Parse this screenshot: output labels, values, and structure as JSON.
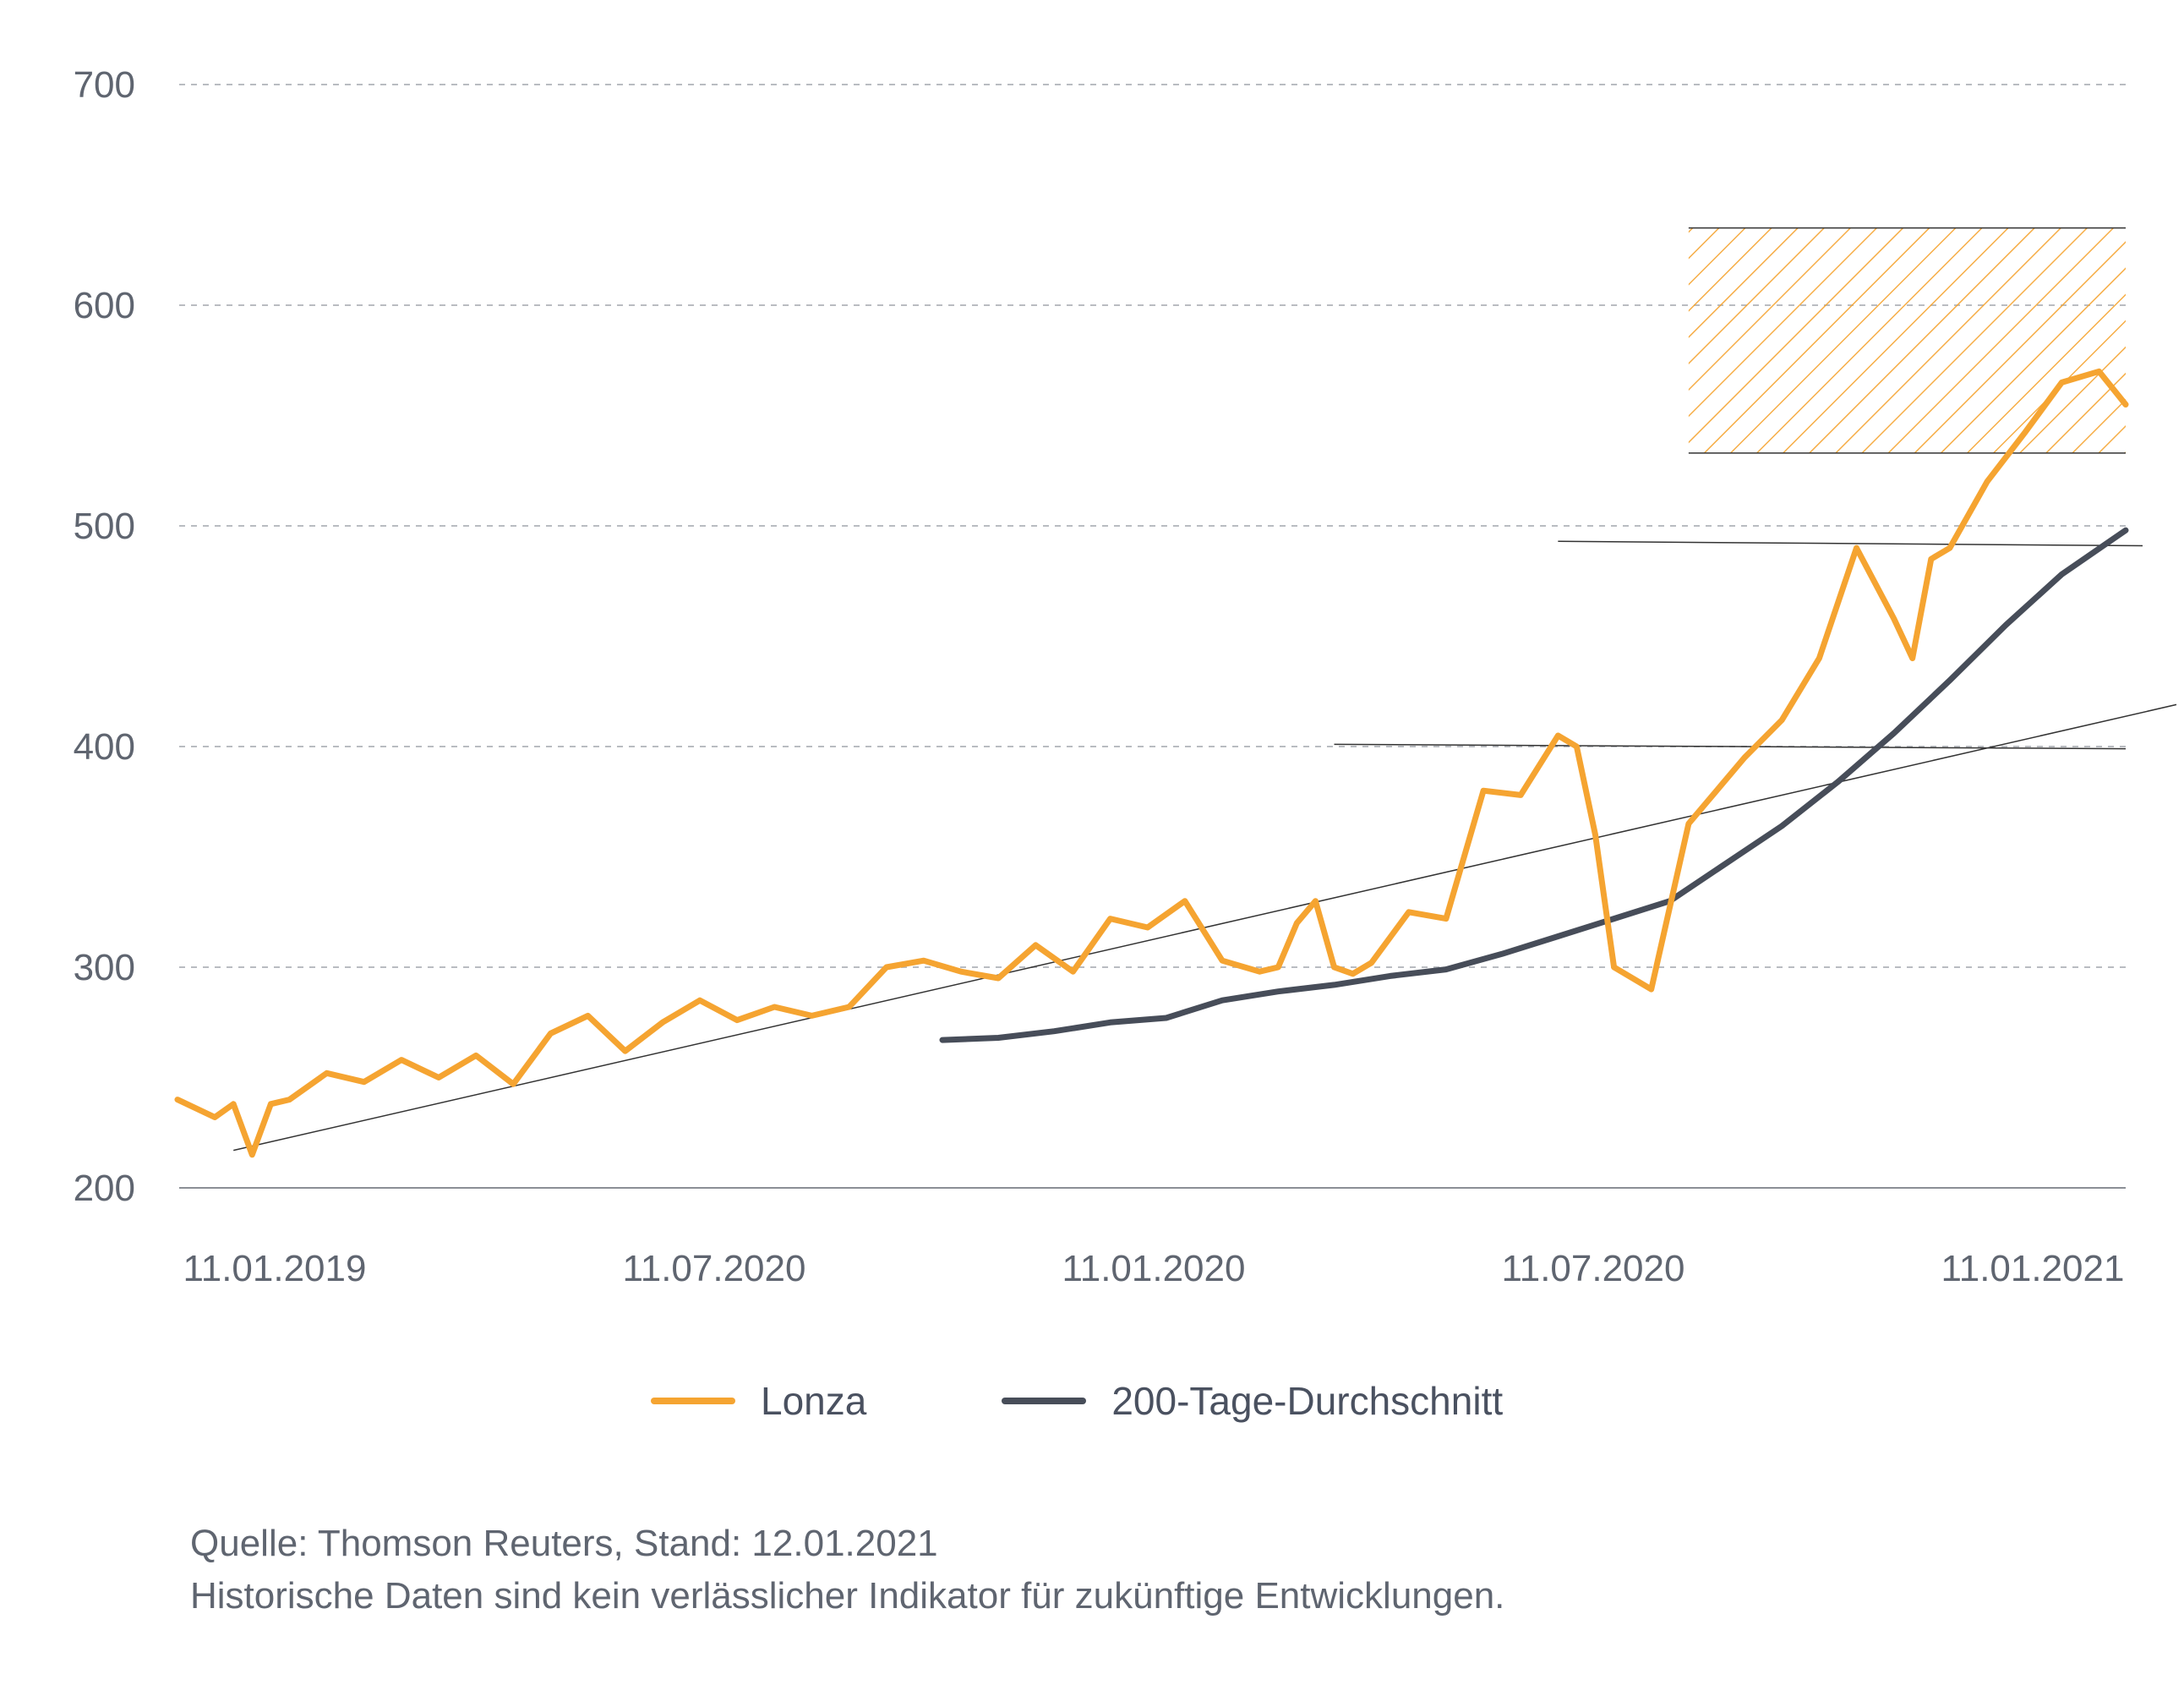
{
  "chart_data": {
    "type": "line",
    "title": "",
    "xlabel": "",
    "ylabel": "",
    "ylim": [
      200,
      700
    ],
    "y_ticks": [
      "200",
      "300",
      "400",
      "500",
      "600",
      "700"
    ],
    "x_tick_labels": [
      "11.01.2019",
      "11.07.2020",
      "11.01.2020",
      "11.07.2020",
      "11.01.2021"
    ],
    "grid": true,
    "legend_placement": "bottom",
    "series": [
      {
        "name": "Lonza",
        "color": "#f5a431",
        "x": [
          "2019-01-11",
          "2019-01-25",
          "2019-02-01",
          "2019-02-08",
          "2019-02-15",
          "2019-02-22",
          "2019-03-08",
          "2019-03-22",
          "2019-04-05",
          "2019-04-19",
          "2019-05-03",
          "2019-05-17",
          "2019-05-31",
          "2019-06-14",
          "2019-06-28",
          "2019-07-12",
          "2019-07-26",
          "2019-08-09",
          "2019-08-23",
          "2019-09-06",
          "2019-09-20",
          "2019-10-04",
          "2019-10-18",
          "2019-11-01",
          "2019-11-15",
          "2019-11-29",
          "2019-12-13",
          "2019-12-27",
          "2020-01-10",
          "2020-01-24",
          "2020-02-07",
          "2020-02-21",
          "2020-02-28",
          "2020-03-06",
          "2020-03-13",
          "2020-03-20",
          "2020-03-27",
          "2020-04-03",
          "2020-04-17",
          "2020-05-01",
          "2020-05-15",
          "2020-05-29",
          "2020-06-12",
          "2020-06-19",
          "2020-06-26",
          "2020-07-03",
          "2020-07-17",
          "2020-07-31",
          "2020-08-07",
          "2020-08-21",
          "2020-09-04",
          "2020-09-18",
          "2020-10-02",
          "2020-10-16",
          "2020-10-23",
          "2020-10-30",
          "2020-11-06",
          "2020-11-20",
          "2020-12-04",
          "2020-12-18",
          "2021-01-01",
          "2021-01-11"
        ],
        "values": [
          240,
          232,
          238,
          215,
          238,
          240,
          252,
          248,
          258,
          250,
          260,
          247,
          270,
          278,
          262,
          275,
          285,
          276,
          282,
          278,
          282,
          300,
          303,
          298,
          295,
          310,
          298,
          322,
          318,
          330,
          303,
          298,
          300,
          320,
          330,
          300,
          297,
          302,
          325,
          322,
          380,
          378,
          405,
          400,
          360,
          300,
          290,
          365,
          375,
          395,
          412,
          440,
          490,
          458,
          440,
          485,
          490,
          520,
          542,
          565,
          570,
          555
        ]
      },
      {
        "name": "200-Tage-Durchschnitt",
        "color": "#474d59",
        "x": [
          "2019-10-25",
          "2019-11-15",
          "2019-12-06",
          "2019-12-27",
          "2020-01-17",
          "2020-02-07",
          "2020-02-28",
          "2020-03-20",
          "2020-04-10",
          "2020-05-01",
          "2020-05-22",
          "2020-06-12",
          "2020-07-03",
          "2020-07-24",
          "2020-08-14",
          "2020-09-04",
          "2020-09-25",
          "2020-10-16",
          "2020-11-06",
          "2020-11-27",
          "2020-12-18",
          "2021-01-11"
        ],
        "values": [
          267,
          268,
          271,
          275,
          277,
          285,
          289,
          292,
          296,
          299,
          306,
          314,
          322,
          330,
          347,
          364,
          384,
          406,
          430,
          455,
          478,
          498
        ]
      }
    ],
    "annotations": {
      "source": "Quelle: Thomson Reuters, Stand: 12.01.2021",
      "disclaimer": "Historische Daten sind kein verlässlicher Indikator für zukünftige Entwicklungen."
    }
  }
}
